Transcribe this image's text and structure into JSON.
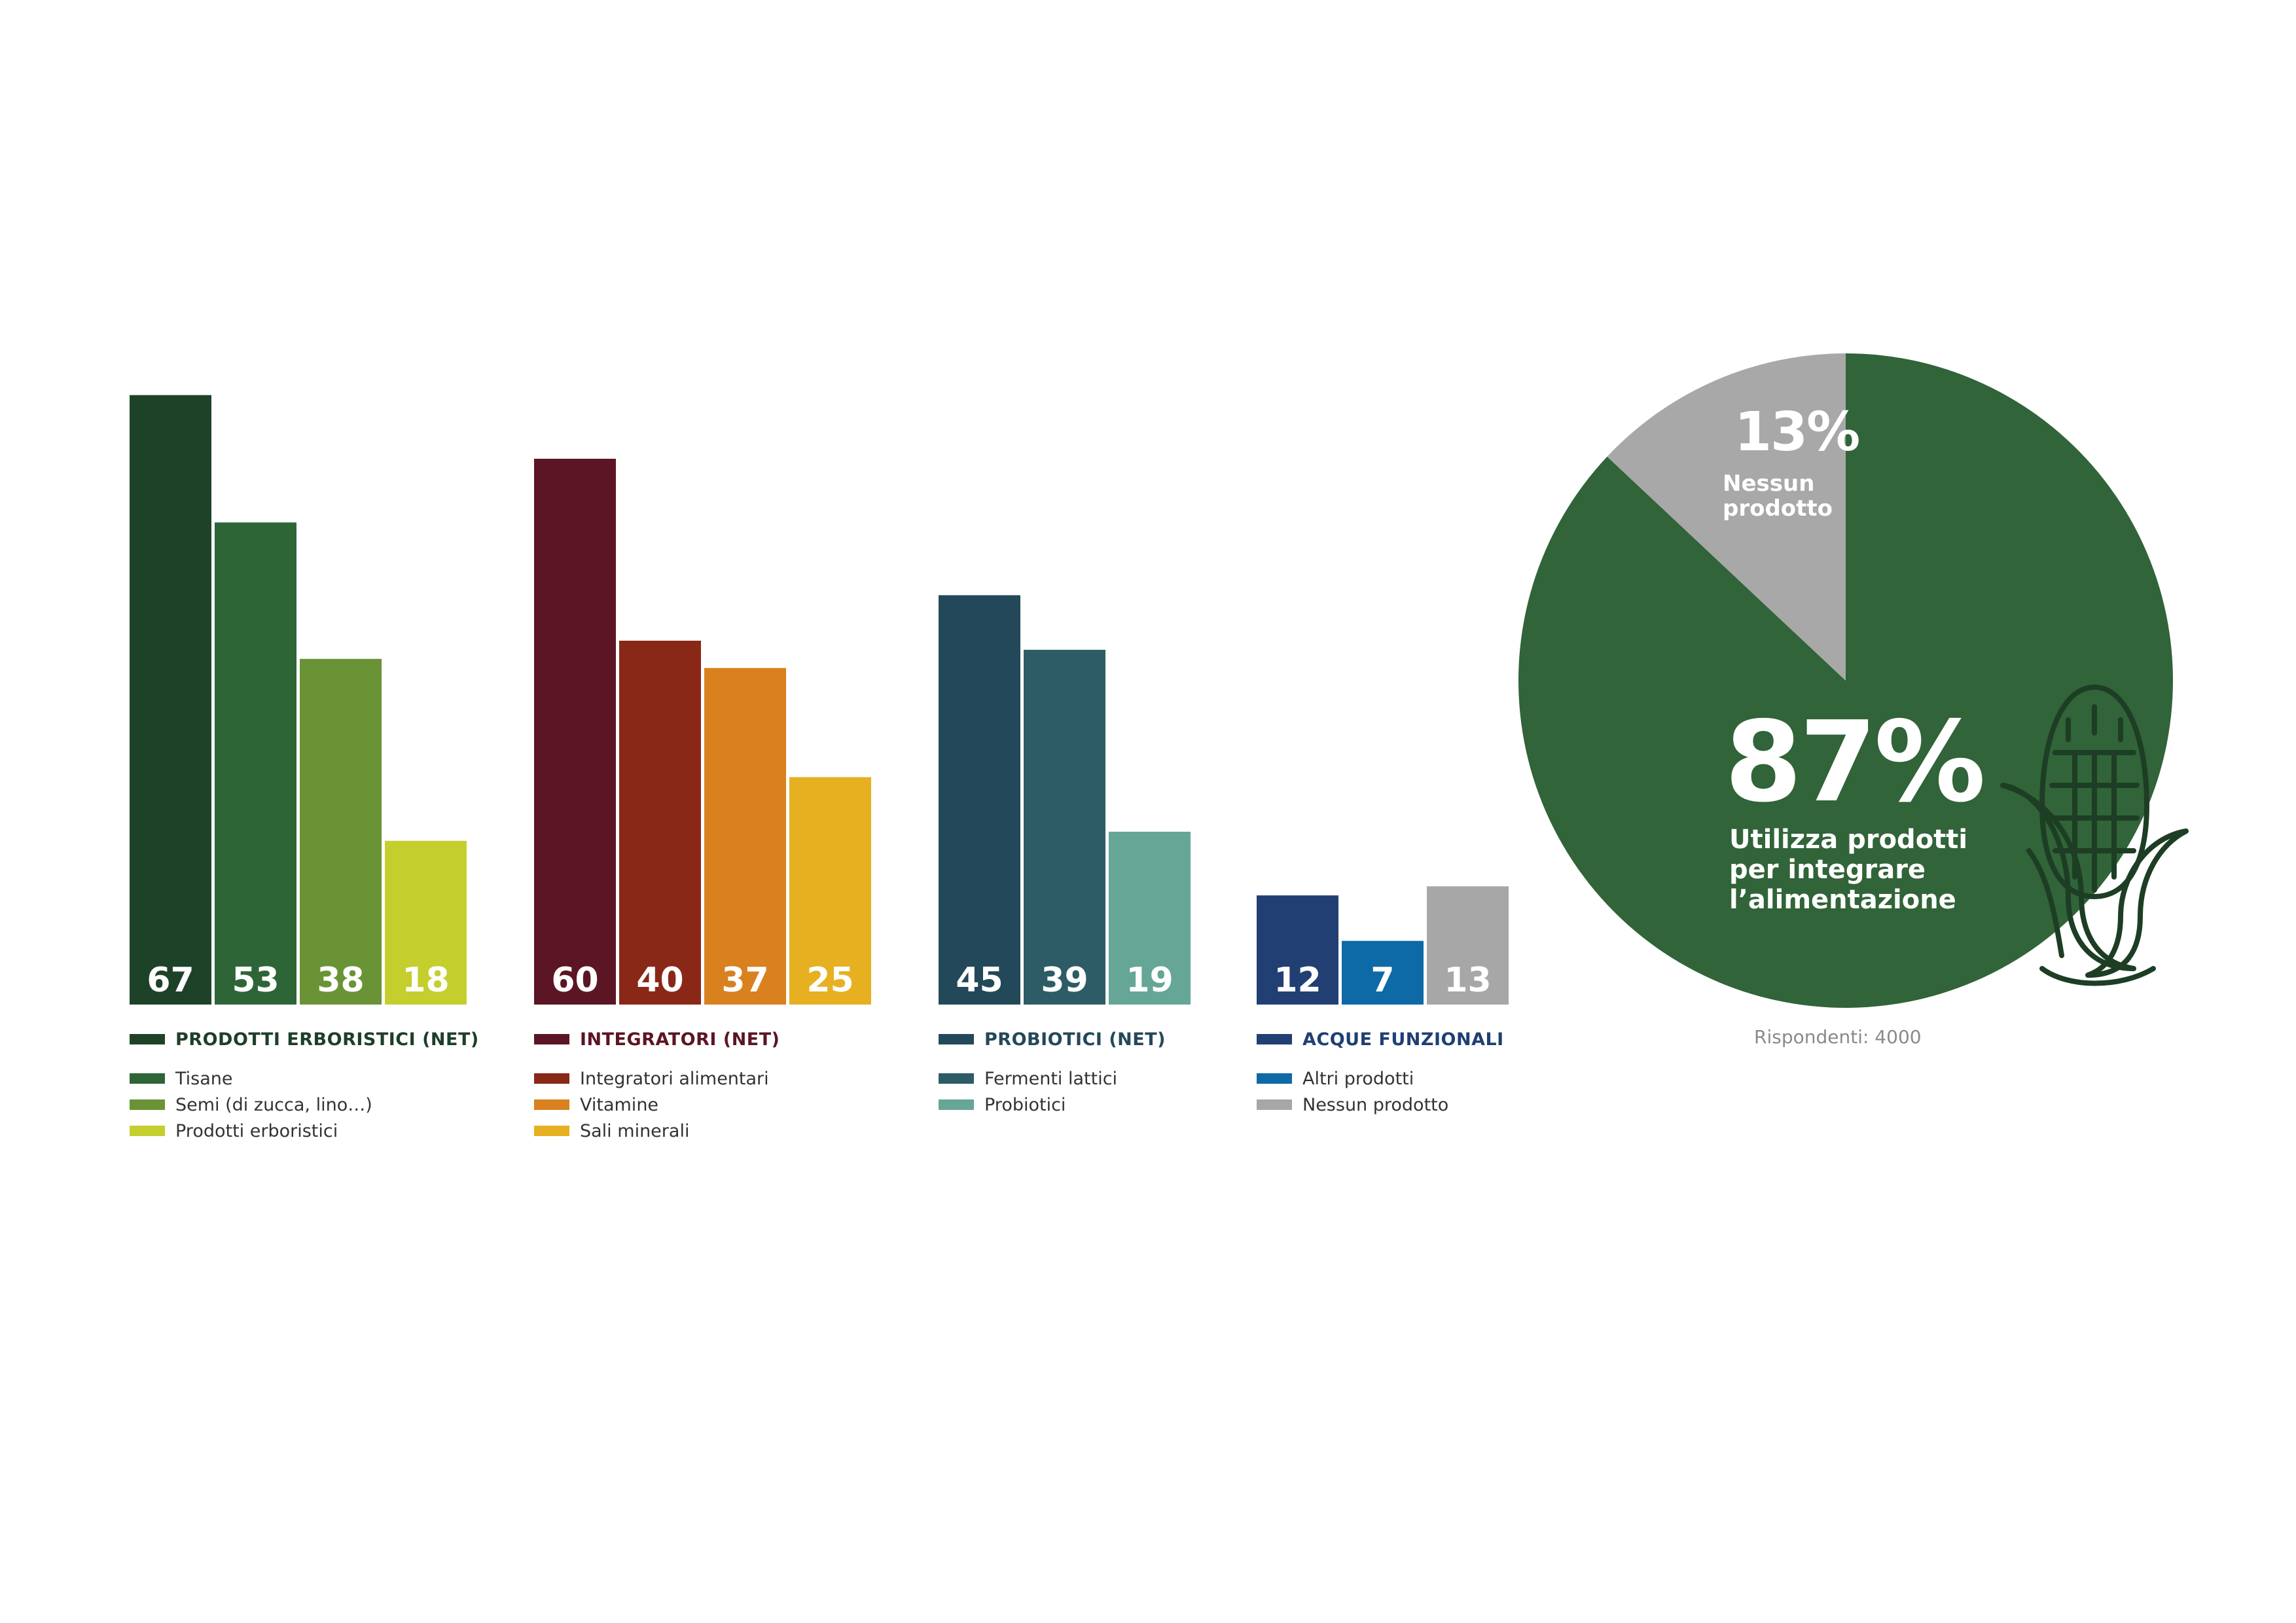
{
  "chart_data": [
    {
      "type": "bar",
      "groups": [
        {
          "name": "PRODOTTI ERBORISTICI (NET)",
          "title_color": "#1e3f27",
          "series": [
            {
              "name": "PRODOTTI ERBORISTICI (NET)",
              "value": 67,
              "color": "#1e4228"
            },
            {
              "name": "Tisane",
              "value": 53,
              "color": "#2e6537"
            },
            {
              "name": "Semi (di zucca, lino…)",
              "value": 38,
              "color": "#6a9336"
            },
            {
              "name": "Prodotti erboristici",
              "value": 18,
              "color": "#c4cf2e"
            }
          ]
        },
        {
          "name": "INTEGRATORI (NET)",
          "title_color": "#5c1524",
          "series": [
            {
              "name": "INTEGRATORI (NET)",
              "value": 60,
              "color": "#5c1524"
            },
            {
              "name": "Integratori alimentari",
              "value": 40,
              "color": "#8a2818"
            },
            {
              "name": "Vitamine",
              "value": 37,
              "color": "#d9801f"
            },
            {
              "name": "Sali minerali",
              "value": 25,
              "color": "#e6b021"
            }
          ]
        },
        {
          "name": "PROBIOTICI (NET)",
          "title_color": "#24485a",
          "series": [
            {
              "name": "PROBIOTICI (NET)",
              "value": 45,
              "color": "#23485a"
            },
            {
              "name": "Fermenti lattici",
              "value": 39,
              "color": "#2d5c66"
            },
            {
              "name": "Probiotici",
              "value": 19,
              "color": "#66a696"
            }
          ]
        },
        {
          "name": "ACQUE FUNZIONALI",
          "title_color": "#1f3f73",
          "series": [
            {
              "name": "ACQUE FUNZIONALI",
              "value": 12,
              "color": "#223f74"
            },
            {
              "name": "Altri prodotti",
              "value": 7,
              "color": "#0d6aa6"
            },
            {
              "name": "Nessun prodotto",
              "value": 13,
              "color": "#a7a7a7"
            }
          ]
        }
      ]
    },
    {
      "type": "pie",
      "slices": [
        {
          "label": "Utilizza prodotti per integrare l’alimentazione",
          "value": 87,
          "display": "87%",
          "color": "#316438"
        },
        {
          "label": "Nessun prodotto",
          "value": 13,
          "display": "13%",
          "color": "#a8a8a8"
        }
      ],
      "footnote": "Rispondenti: 4000"
    }
  ]
}
